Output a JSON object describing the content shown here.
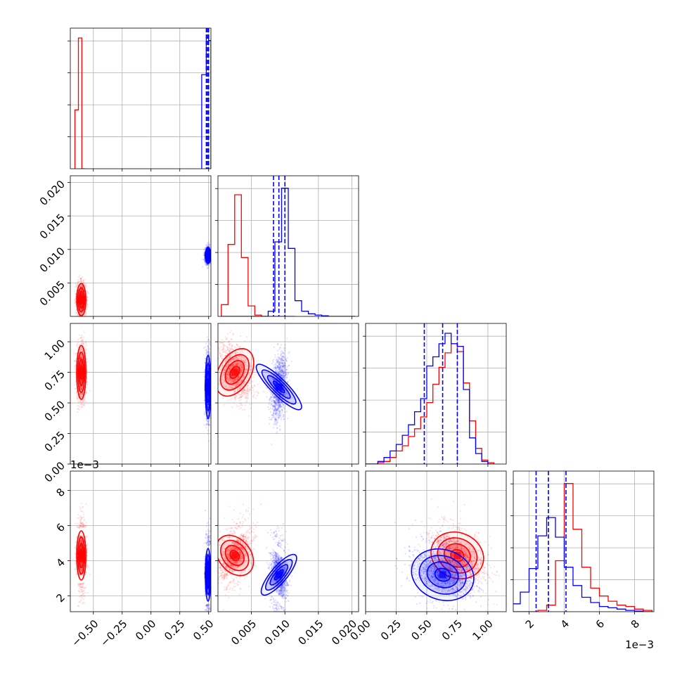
{
  "chart_data": {
    "type": "corner",
    "parameters": 4,
    "series": [
      {
        "name": "",
        "color": "#ff0000"
      },
      {
        "name": "",
        "color": "#0000ff"
      }
    ],
    "axes": [
      {
        "range": [
          -0.7,
          0.52
        ],
        "ticks": [
          -0.5,
          -0.25,
          0.0,
          0.25,
          0.5
        ],
        "tick_labels": [
          "−0.50",
          "−0.25",
          "0.00",
          "0.25",
          "0.50"
        ],
        "offset": ""
      },
      {
        "range": [
          0.0,
          0.021
        ],
        "ticks": [
          0.005,
          0.01,
          0.015,
          0.02
        ],
        "tick_labels": [
          "0.005",
          "0.010",
          "0.015",
          "0.020"
        ],
        "offset": ""
      },
      {
        "range": [
          0.0,
          1.15
        ],
        "ticks": [
          0.0,
          0.25,
          0.5,
          0.75,
          1.0
        ],
        "tick_labels": [
          "0.00",
          "0.25",
          "0.50",
          "0.75",
          "1.00"
        ],
        "offset": ""
      },
      {
        "range": [
          1.1,
          9.1
        ],
        "ticks": [
          2,
          4,
          6,
          8
        ],
        "tick_labels": [
          "2",
          "4",
          "6",
          "8"
        ],
        "offset": "1e−3"
      }
    ],
    "red": {
      "means": [
        -0.605,
        0.0025,
        0.75,
        4.3
      ],
      "sds": [
        0.02,
        0.0012,
        0.11,
        0.7
      ],
      "quantiles": [],
      "hist": [
        {
          "edges": [
            -0.66,
            -0.63,
            -0.6,
            -0.575
          ],
          "counts": [
            0.45,
            1.0,
            0.0
          ]
        },
        {
          "edges": [
            0.0005,
            0.0015,
            0.0025,
            0.0035,
            0.0045,
            0.0055,
            0.0065,
            0.0075,
            0.0085,
            0.0095,
            0.0105,
            0.0115
          ],
          "counts": [
            0.09,
            0.55,
            0.93,
            0.45,
            0.08,
            0.01,
            0.0,
            0.0,
            0.0,
            0.0,
            0.0
          ]
        },
        {
          "edges": [
            0.0,
            0.05,
            0.1,
            0.15,
            0.2,
            0.25,
            0.3,
            0.35,
            0.4,
            0.45,
            0.5,
            0.55,
            0.6,
            0.65,
            0.7,
            0.75,
            0.8,
            0.85,
            0.9,
            0.95,
            1.0,
            1.05
          ],
          "counts": [
            0.0,
            0.0,
            0.01,
            0.02,
            0.05,
            0.1,
            0.14,
            0.21,
            0.27,
            0.36,
            0.47,
            0.61,
            0.74,
            0.85,
            0.92,
            0.86,
            0.62,
            0.33,
            0.12,
            0.03,
            0.01
          ]
        },
        {
          "edges": [
            1.0,
            1.5,
            2.0,
            2.5,
            3.0,
            3.5,
            4.0,
            4.5,
            5.0,
            5.5,
            6.0,
            6.5,
            7.0,
            7.5,
            8.0,
            8.5,
            9.0
          ],
          "counts": [
            0.0,
            0.0,
            0.0,
            0.01,
            0.05,
            0.39,
            0.98,
            0.63,
            0.34,
            0.18,
            0.12,
            0.08,
            0.05,
            0.04,
            0.02,
            0.01
          ]
        }
      ]
    },
    "blue": {
      "means": [
        0.495,
        0.0091,
        0.63,
        3.2
      ],
      "sds": [
        0.012,
        0.0006,
        0.13,
        0.75
      ],
      "quantiles": [
        [
          0.48,
          0.49,
          0.5
        ],
        [
          0.0083,
          0.0091,
          0.01
        ],
        [
          0.48,
          0.63,
          0.75
        ],
        [
          2.4,
          3.1,
          4.1
        ]
      ],
      "hist": [
        {
          "edges": [
            0.44,
            0.48,
            0.5,
            0.52
          ],
          "counts": [
            0.72,
            1.0,
            0.98
          ]
        },
        {
          "edges": [
            0.0005,
            0.0015,
            0.0025,
            0.0035,
            0.0045,
            0.0055,
            0.0065,
            0.0075,
            0.0085,
            0.0095,
            0.0105,
            0.0115,
            0.0125,
            0.0135,
            0.0145,
            0.0155,
            0.0165,
            0.0175,
            0.0185,
            0.0195,
            0.0205
          ],
          "counts": [
            0.0,
            0.0,
            0.0,
            0.0,
            0.0,
            0.0,
            0.0,
            0.04,
            0.57,
            0.98,
            0.52,
            0.12,
            0.04,
            0.02,
            0.01,
            0.005,
            0.0,
            0.0,
            0.0,
            0.0
          ]
        },
        {
          "edges": [
            0.0,
            0.05,
            0.1,
            0.15,
            0.2,
            0.25,
            0.3,
            0.35,
            0.4,
            0.45,
            0.5,
            0.55,
            0.6,
            0.65,
            0.7,
            0.75,
            0.8,
            0.85,
            0.9,
            0.95,
            1.0,
            1.05
          ],
          "counts": [
            0.0,
            0.0,
            0.02,
            0.05,
            0.1,
            0.15,
            0.22,
            0.3,
            0.4,
            0.5,
            0.75,
            0.82,
            0.92,
            1.0,
            0.92,
            0.9,
            0.57,
            0.2,
            0.08,
            0.02,
            0.0
          ]
        },
        {
          "edges": [
            1.0,
            1.5,
            2.0,
            2.5,
            3.0,
            3.5,
            4.0,
            4.5,
            5.0,
            5.5,
            6.0,
            6.5,
            7.0,
            7.5,
            8.0,
            8.5,
            9.0
          ],
          "counts": [
            0.06,
            0.15,
            0.33,
            0.58,
            0.72,
            0.57,
            0.34,
            0.2,
            0.11,
            0.07,
            0.04,
            0.03,
            0.02,
            0.01,
            0.005,
            0.0
          ]
        }
      ]
    },
    "grid": true,
    "legend": "none"
  }
}
